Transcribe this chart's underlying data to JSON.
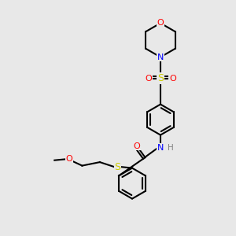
{
  "background_color": "#e8e8e8",
  "atom_colors": {
    "O": "#ff0000",
    "N": "#0000ff",
    "S": "#cccc00",
    "C": "#000000",
    "H": "#808080"
  },
  "bond_color": "#000000",
  "bond_width": 1.5
}
